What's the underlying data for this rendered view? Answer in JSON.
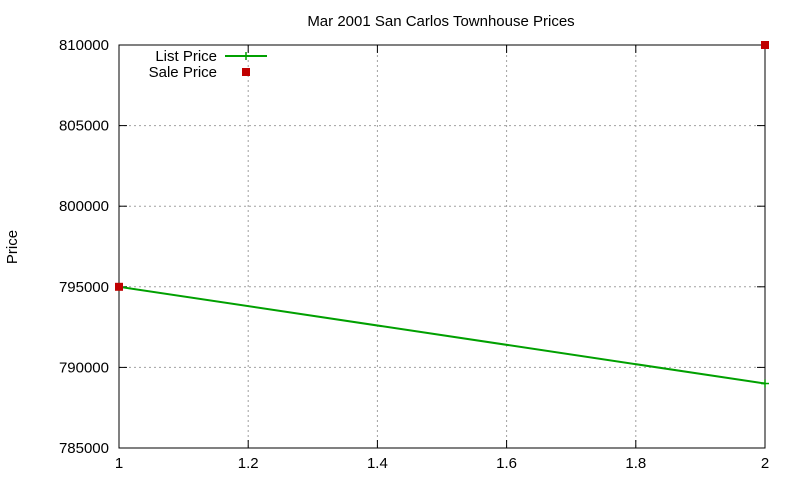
{
  "chart_data": {
    "type": "line",
    "title": "Mar 2001 San Carlos Townhouse Prices",
    "xlabel": "",
    "ylabel": "Price",
    "xlim": [
      1,
      2
    ],
    "ylim": [
      785000,
      810000
    ],
    "xticks": [
      "1",
      "1.2",
      "1.4",
      "1.6",
      "1.8",
      "2"
    ],
    "xtick_values": [
      1,
      1.2,
      1.4,
      1.6,
      1.8,
      2
    ],
    "yticks": [
      "785000",
      "790000",
      "795000",
      "800000",
      "805000",
      "810000"
    ],
    "ytick_values": [
      785000,
      790000,
      795000,
      800000,
      805000,
      810000
    ],
    "grid": true,
    "legend_position": "top-left",
    "series": [
      {
        "name": "List Price",
        "style": "line",
        "color": "#00a000",
        "x": [
          1,
          2
        ],
        "y": [
          795000,
          789000
        ]
      },
      {
        "name": "Sale Price",
        "style": "points",
        "color": "#c00000",
        "x": [
          1,
          2
        ],
        "y": [
          795000,
          810000
        ]
      }
    ]
  }
}
